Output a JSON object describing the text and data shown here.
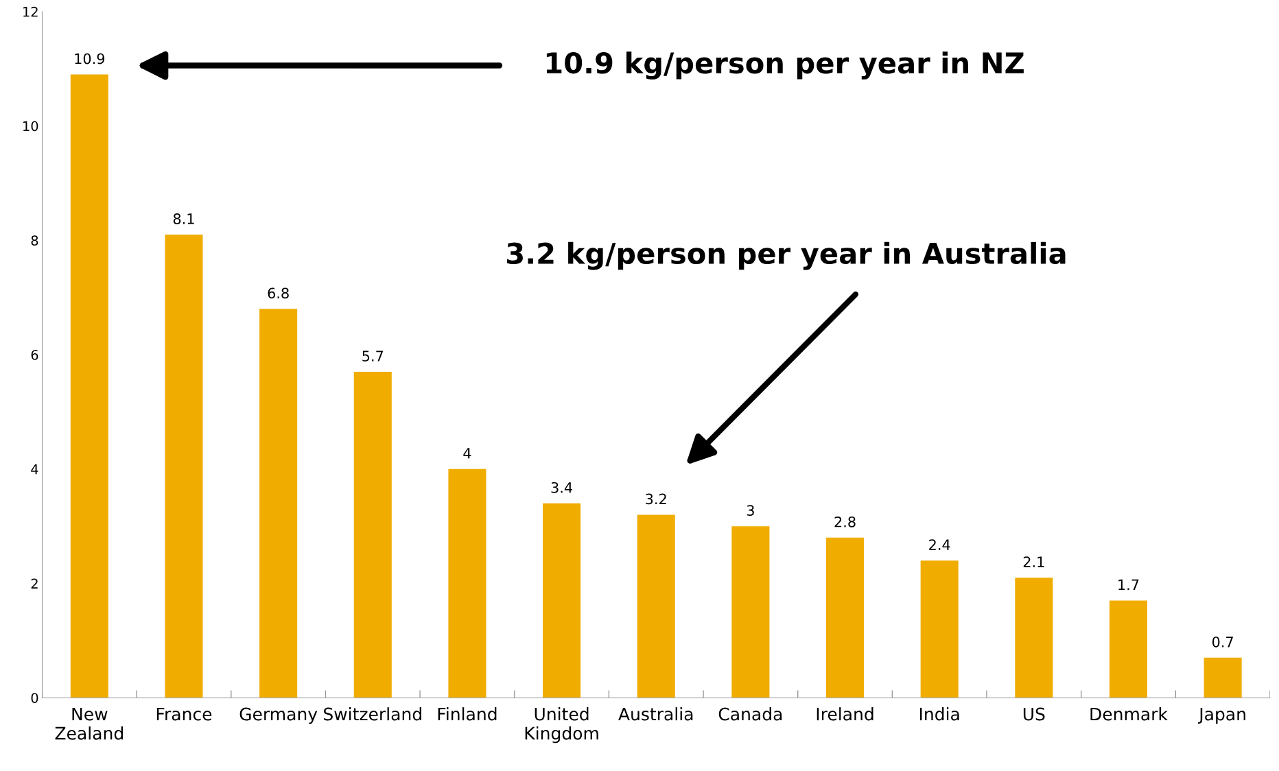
{
  "chart_data": {
    "type": "bar",
    "categories": [
      "New\nZealand",
      "France",
      "Germany",
      "Switzerland",
      "Finland",
      "United\nKingdom",
      "Australia",
      "Canada",
      "Ireland",
      "India",
      "US",
      "Denmark",
      "Japan"
    ],
    "values": [
      10.9,
      8.1,
      6.8,
      5.7,
      4,
      3.4,
      3.2,
      3,
      2.8,
      2.4,
      2.1,
      1.7,
      0.7
    ],
    "color": "#f0ad00",
    "ylim": [
      0,
      12
    ],
    "yticks": [
      0,
      2,
      4,
      6,
      8,
      10,
      12
    ],
    "grid": false,
    "data_labels": true,
    "annotations": [
      "10.9 kg/person per year in NZ",
      "3.2 kg/person per year in Australia"
    ]
  }
}
